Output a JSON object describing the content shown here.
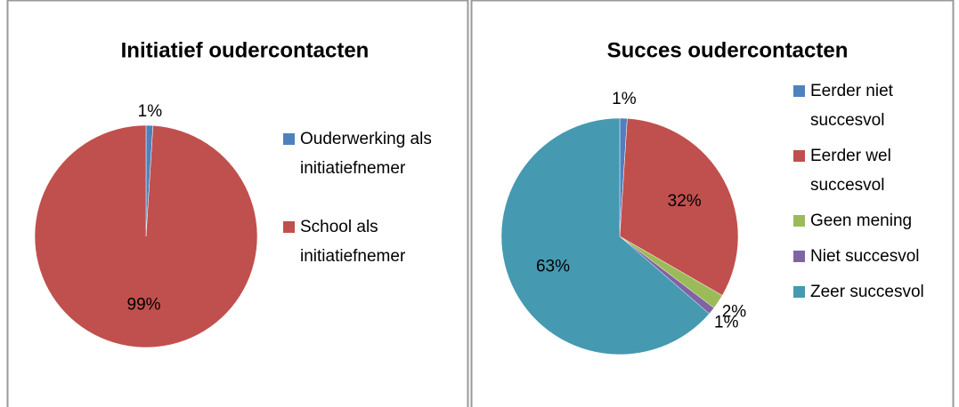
{
  "chart_data": [
    {
      "type": "pie",
      "title": "Initiatief oudercontacten",
      "categories": [
        "Ouderwerking als initiatiefnemer",
        "School als initiatiefnemer"
      ],
      "values": [
        1,
        99
      ],
      "value_labels": [
        "1%",
        "99%"
      ],
      "colors": [
        "#4f81bd",
        "#c0504d"
      ],
      "legend": "right"
    },
    {
      "type": "pie",
      "title": "Succes oudercontacten",
      "categories": [
        "Eerder niet succesvol",
        "Eerder wel succesvol",
        "Geen mening",
        "Niet succesvol",
        "Zeer succesvol"
      ],
      "values": [
        1,
        32,
        2,
        1,
        63
      ],
      "value_labels": [
        "1%",
        "32%",
        "2%",
        "1%",
        "63%"
      ],
      "colors": [
        "#4f81bd",
        "#c0504d",
        "#9bbb59",
        "#8064a2",
        "#4599b1"
      ],
      "legend": "right"
    }
  ]
}
